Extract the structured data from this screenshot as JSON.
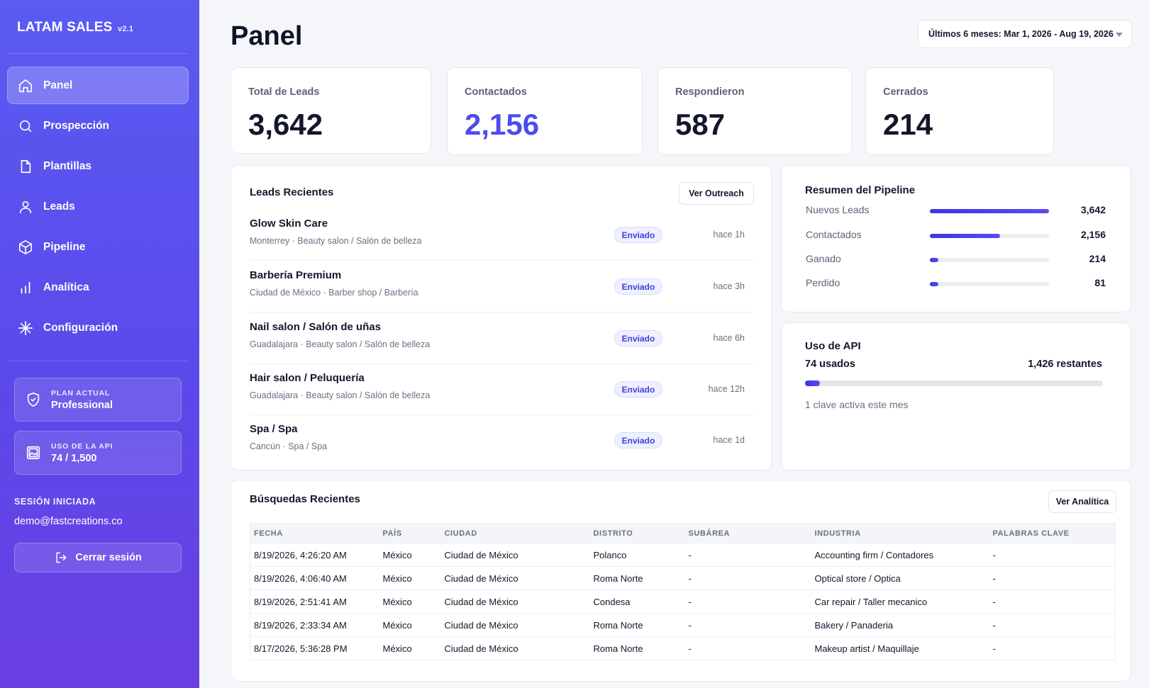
{
  "sidebar": {
    "brand": "LATAM SALES",
    "version": "v2.1",
    "nav": [
      {
        "label": "Panel",
        "icon": "home-icon",
        "active": true
      },
      {
        "label": "Prospección",
        "icon": "search-icon"
      },
      {
        "label": "Plantillas",
        "icon": "file-icon"
      },
      {
        "label": "Leads",
        "icon": "user-icon"
      },
      {
        "label": "Pipeline",
        "icon": "box-icon"
      },
      {
        "label": "Analítica",
        "icon": "bar-chart-icon"
      },
      {
        "label": "Configuración",
        "icon": "sparkle-icon"
      }
    ],
    "plan": {
      "label": "PLAN ACTUAL",
      "value": "Professional"
    },
    "api": {
      "label": "USO DE LA API",
      "value": "74 / 1,500"
    },
    "session_label": "SESIÓN INICIADA",
    "session_email": "demo@fastcreations.co",
    "logout_label": "Cerrar sesión"
  },
  "header": {
    "title": "Panel",
    "date_range": "Últimos 6 meses: Mar 1, 2026 - Aug 19, 2026"
  },
  "stats": [
    {
      "label": "Total de Leads",
      "value": "3,642"
    },
    {
      "label": "Contactados",
      "value": "2,156"
    },
    {
      "label": "Respondieron",
      "value": "587"
    },
    {
      "label": "Cerrados",
      "value": "214"
    }
  ],
  "recent_leads": {
    "title": "Leads Recientes",
    "button": "Ver Outreach",
    "items": [
      {
        "name": "Glow Skin Care",
        "city": "Monterrey",
        "category": "Beauty salon / Salón de belleza",
        "status": "Enviado",
        "time": "hace 1h"
      },
      {
        "name": "Barbería Premium",
        "city": "Ciudad de México",
        "category": "Barber shop / Barbería",
        "status": "Enviado",
        "time": "hace 3h"
      },
      {
        "name": "Nail salon / Salón de uñas",
        "city": "Guadalajara",
        "category": "Beauty salon / Salón de belleza",
        "status": "Enviado",
        "time": "hace 6h"
      },
      {
        "name": "Hair salon / Peluquería",
        "city": "Guadalajara",
        "category": "Beauty salon / Salón de belleza",
        "status": "Enviado",
        "time": "hace 12h"
      },
      {
        "name": "Spa / Spa",
        "city": "Cancún",
        "category": "Spa / Spa",
        "status": "Enviado",
        "time": "hace 1d"
      }
    ]
  },
  "pipeline": {
    "title": "Resumen del Pipeline",
    "max": 3642,
    "rows": [
      {
        "label": "Nuevos Leads",
        "value": 3642,
        "display": "3,642"
      },
      {
        "label": "Contactados",
        "value": 2156,
        "display": "2,156"
      },
      {
        "label": "Ganado",
        "value": 214,
        "display": "214"
      },
      {
        "label": "Perdido",
        "value": 81,
        "display": "81"
      }
    ]
  },
  "api_usage": {
    "title": "Uso de API",
    "used_label": "74 usados",
    "remaining_label": "1,426 restantes",
    "used": 74,
    "limit": 1500,
    "note": "1 clave activa este mes"
  },
  "searches": {
    "title": "Búsquedas Recientes",
    "button": "Ver Analítica",
    "columns": [
      "FECHA",
      "PAÍS",
      "CIUDAD",
      "DISTRITO",
      "SUBÁREA",
      "INDUSTRIA",
      "PALABRAS CLAVE"
    ],
    "rows": [
      [
        "8/19/2026, 4:26:20 AM",
        "México",
        "Ciudad de México",
        "Polanco",
        "-",
        "Accounting firm / Contadores",
        "-"
      ],
      [
        "8/19/2026, 4:06:40 AM",
        "México",
        "Ciudad de México",
        "Roma Norte",
        "-",
        "Optical store / Optica",
        "-"
      ],
      [
        "8/19/2026, 2:51:41 AM",
        "México",
        "Ciudad de México",
        "Condesa",
        "-",
        "Car repair / Taller mecanico",
        "-"
      ],
      [
        "8/19/2026, 2:33:34 AM",
        "México",
        "Ciudad de México",
        "Roma Norte",
        "-",
        "Bakery / Panaderia",
        "-"
      ],
      [
        "8/17/2026, 5:36:28 PM",
        "México",
        "Ciudad de México",
        "Roma Norte",
        "-",
        "Makeup artist / Maquillaje",
        "-"
      ]
    ]
  },
  "colors": {
    "accent": "#4a4cf0",
    "sidebar_top": "#5a5bf2",
    "sidebar_bottom": "#6a3fe3"
  }
}
